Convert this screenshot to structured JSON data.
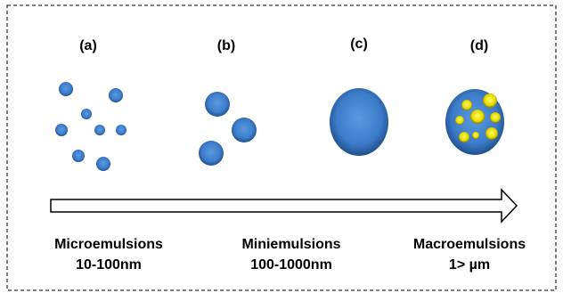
{
  "panels": [
    {
      "label": "(a)"
    },
    {
      "label": "(b)"
    },
    {
      "label": "(c)"
    },
    {
      "label": "(d)"
    }
  ],
  "captions": [
    {
      "name": "Microemulsions",
      "size": "10-100nm"
    },
    {
      "name": "Miniemulsions",
      "size": "100-1000nm"
    },
    {
      "name": "Macroemulsions",
      "size": "1> µm"
    }
  ]
}
